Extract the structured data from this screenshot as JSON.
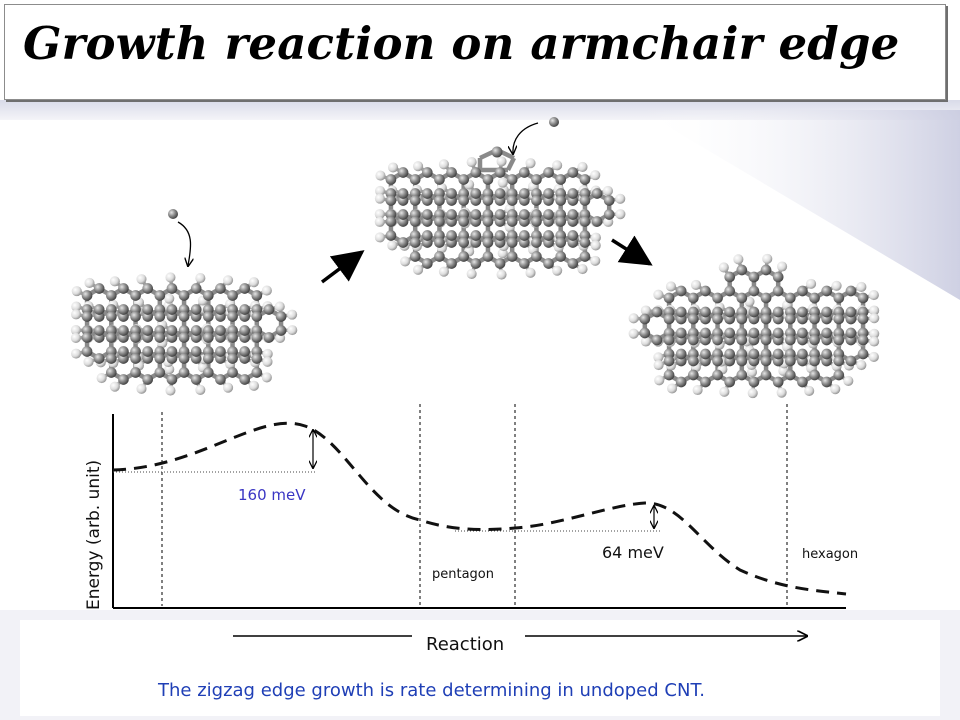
{
  "title": "Growth reaction on armchair edge",
  "axis": {
    "ylabel": "Energy (arb. unit)",
    "xlabel": "Reaction"
  },
  "annotations": {
    "barrier_1": "160 meV",
    "barrier_2": "64 meV",
    "state_pentagon": "pentagon",
    "state_hexagon": "hexagon"
  },
  "caption": "The zigzag edge growth is rate determining in undoped CNT.",
  "colors": {
    "caption": "#1f3fb6",
    "barrier_1": "#3a36c4",
    "carbon": "#7a7a7a",
    "hydrogen": "#e6e6e6",
    "curve": "#111111",
    "background_panel": "#e9eaf3"
  }
}
